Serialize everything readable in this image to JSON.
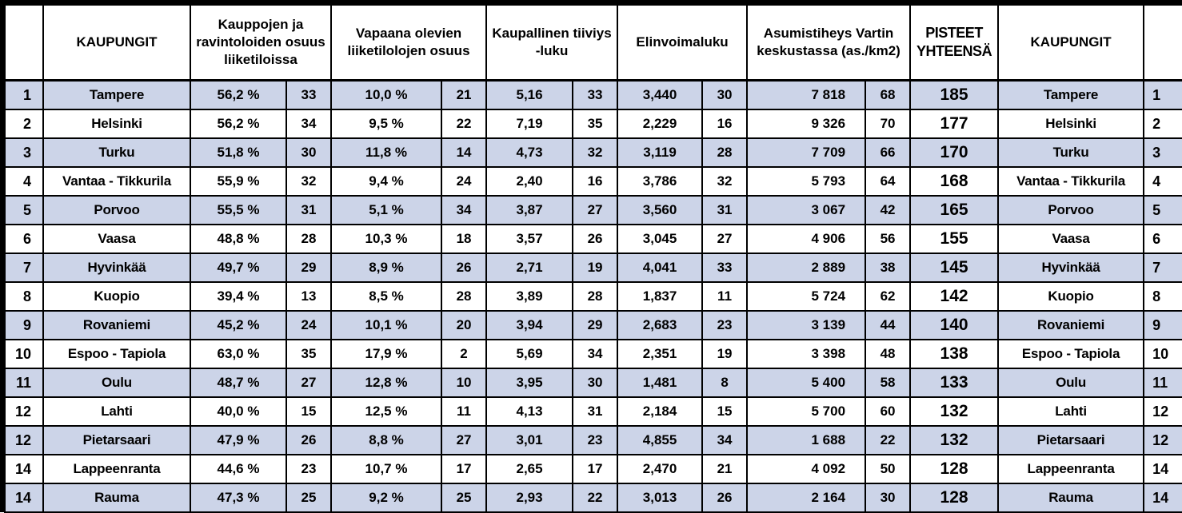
{
  "chart_data": {
    "type": "table",
    "headers": {
      "rank_left": "",
      "city_left": "KAUPUNGIT",
      "shops_share": "Kauppojen ja ravintoloiden osuus liiketiloissa",
      "vacant_share": "Vapaana olevien liiketilolojen osuus",
      "commercial_density": "Kaupallinen tiiviys -luku",
      "vitality": "Elinvoimaluku",
      "housing_density": "Asumistiheys Vartin keskustassa (as./km2)",
      "total_points": "PISTEET YHTEENSÄ",
      "city_right": "KAUPUNGIT",
      "rank_right": ""
    },
    "rows": [
      {
        "rank": "1",
        "city": "Tampere",
        "shops_pct": "56,2 %",
        "shops_pts": "33",
        "vacant_pct": "10,0 %",
        "vacant_pts": "21",
        "density": "5,16",
        "density_pts": "33",
        "vitality": "3,440",
        "vitality_pts": "30",
        "housing": "7 818",
        "housing_pts": "68",
        "total": "185"
      },
      {
        "rank": "2",
        "city": "Helsinki",
        "shops_pct": "56,2 %",
        "shops_pts": "34",
        "vacant_pct": "9,5 %",
        "vacant_pts": "22",
        "density": "7,19",
        "density_pts": "35",
        "vitality": "2,229",
        "vitality_pts": "16",
        "housing": "9 326",
        "housing_pts": "70",
        "total": "177"
      },
      {
        "rank": "3",
        "city": "Turku",
        "shops_pct": "51,8 %",
        "shops_pts": "30",
        "vacant_pct": "11,8 %",
        "vacant_pts": "14",
        "density": "4,73",
        "density_pts": "32",
        "vitality": "3,119",
        "vitality_pts": "28",
        "housing": "7 709",
        "housing_pts": "66",
        "total": "170"
      },
      {
        "rank": "4",
        "city": "Vantaa - Tikkurila",
        "shops_pct": "55,9 %",
        "shops_pts": "32",
        "vacant_pct": "9,4 %",
        "vacant_pts": "24",
        "density": "2,40",
        "density_pts": "16",
        "vitality": "3,786",
        "vitality_pts": "32",
        "housing": "5 793",
        "housing_pts": "64",
        "total": "168"
      },
      {
        "rank": "5",
        "city": "Porvoo",
        "shops_pct": "55,5 %",
        "shops_pts": "31",
        "vacant_pct": "5,1 %",
        "vacant_pts": "34",
        "density": "3,87",
        "density_pts": "27",
        "vitality": "3,560",
        "vitality_pts": "31",
        "housing": "3 067",
        "housing_pts": "42",
        "total": "165"
      },
      {
        "rank": "6",
        "city": "Vaasa",
        "shops_pct": "48,8 %",
        "shops_pts": "28",
        "vacant_pct": "10,3 %",
        "vacant_pts": "18",
        "density": "3,57",
        "density_pts": "26",
        "vitality": "3,045",
        "vitality_pts": "27",
        "housing": "4 906",
        "housing_pts": "56",
        "total": "155"
      },
      {
        "rank": "7",
        "city": "Hyvinkää",
        "shops_pct": "49,7 %",
        "shops_pts": "29",
        "vacant_pct": "8,9 %",
        "vacant_pts": "26",
        "density": "2,71",
        "density_pts": "19",
        "vitality": "4,041",
        "vitality_pts": "33",
        "housing": "2 889",
        "housing_pts": "38",
        "total": "145"
      },
      {
        "rank": "8",
        "city": "Kuopio",
        "shops_pct": "39,4 %",
        "shops_pts": "13",
        "vacant_pct": "8,5 %",
        "vacant_pts": "28",
        "density": "3,89",
        "density_pts": "28",
        "vitality": "1,837",
        "vitality_pts": "11",
        "housing": "5 724",
        "housing_pts": "62",
        "total": "142"
      },
      {
        "rank": "9",
        "city": "Rovaniemi",
        "shops_pct": "45,2 %",
        "shops_pts": "24",
        "vacant_pct": "10,1 %",
        "vacant_pts": "20",
        "density": "3,94",
        "density_pts": "29",
        "vitality": "2,683",
        "vitality_pts": "23",
        "housing": "3 139",
        "housing_pts": "44",
        "total": "140"
      },
      {
        "rank": "10",
        "city": "Espoo - Tapiola",
        "shops_pct": "63,0 %",
        "shops_pts": "35",
        "vacant_pct": "17,9 %",
        "vacant_pts": "2",
        "density": "5,69",
        "density_pts": "34",
        "vitality": "2,351",
        "vitality_pts": "19",
        "housing": "3 398",
        "housing_pts": "48",
        "total": "138"
      },
      {
        "rank": "11",
        "city": "Oulu",
        "shops_pct": "48,7 %",
        "shops_pts": "27",
        "vacant_pct": "12,8 %",
        "vacant_pts": "10",
        "density": "3,95",
        "density_pts": "30",
        "vitality": "1,481",
        "vitality_pts": "8",
        "housing": "5 400",
        "housing_pts": "58",
        "total": "133"
      },
      {
        "rank": "12",
        "city": "Lahti",
        "shops_pct": "40,0 %",
        "shops_pts": "15",
        "vacant_pct": "12,5 %",
        "vacant_pts": "11",
        "density": "4,13",
        "density_pts": "31",
        "vitality": "2,184",
        "vitality_pts": "15",
        "housing": "5 700",
        "housing_pts": "60",
        "total": "132"
      },
      {
        "rank": "12",
        "city": "Pietarsaari",
        "shops_pct": "47,9 %",
        "shops_pts": "26",
        "vacant_pct": "8,8 %",
        "vacant_pts": "27",
        "density": "3,01",
        "density_pts": "23",
        "vitality": "4,855",
        "vitality_pts": "34",
        "housing": "1 688",
        "housing_pts": "22",
        "total": "132"
      },
      {
        "rank": "14",
        "city": "Lappeenranta",
        "shops_pct": "44,6 %",
        "shops_pts": "23",
        "vacant_pct": "10,7 %",
        "vacant_pts": "17",
        "density": "2,65",
        "density_pts": "17",
        "vitality": "2,470",
        "vitality_pts": "21",
        "housing": "4 092",
        "housing_pts": "50",
        "total": "128"
      },
      {
        "rank": "14",
        "city": "Rauma",
        "shops_pct": "47,3 %",
        "shops_pts": "25",
        "vacant_pct": "9,2 %",
        "vacant_pts": "25",
        "density": "2,93",
        "density_pts": "22",
        "vitality": "3,013",
        "vitality_pts": "26",
        "housing": "2 164",
        "housing_pts": "30",
        "total": "128"
      }
    ]
  },
  "colors": {
    "row_alt": "#ccd4e8",
    "row_base": "#ffffff",
    "border": "#000000",
    "text": "#000000"
  }
}
